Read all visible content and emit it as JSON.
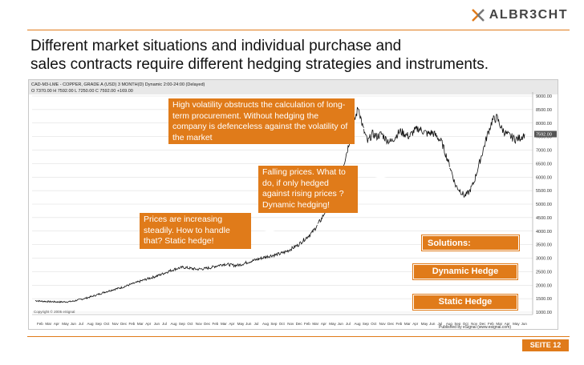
{
  "logo": {
    "text": "ALBR3CHT"
  },
  "title": {
    "line1": "Different market situations and individual purchase and",
    "line2": "sales contracts require different hedging strategies and instruments."
  },
  "chart": {
    "header_line": "CAD-M3-LME - COPPER, GRADE A (USD) 3 MONTH(D) Dynamic 2:00-24:00 (Delayed)",
    "ohlc_line": "O 7370.00  H 7592.00  L 7250.00  C 7592.00  +169.00",
    "copyright": "Copyright © 2005 eSignal",
    "published": "Published by eSignal (www.esignal.com)",
    "y_axis_labels": [
      "9000.00",
      "8500.00",
      "8000.00",
      "7500.00",
      "7000.00",
      "6500.00",
      "6000.00",
      "5500.00",
      "5000.00",
      "4500.00",
      "4000.00",
      "3500.00",
      "3000.00",
      "2500.00",
      "2000.00",
      "1500.00",
      "1000.00"
    ],
    "last_price_label": "7592.00",
    "month_labels": [
      "Feb",
      "Mar",
      "Apr",
      "May",
      "Jun",
      "Jul",
      "Aug",
      "Sep",
      "Oct",
      "Nov",
      "Dec",
      "Feb",
      "Mar",
      "Apr",
      "Jun",
      "Jul",
      "Aug",
      "Sep",
      "Oct",
      "Nov",
      "Dec",
      "Feb",
      "Mar",
      "Apr",
      "May",
      "Jun",
      "Jul",
      "Aug",
      "Sep",
      "Oct",
      "Nov",
      "Dec",
      "Feb",
      "Mar",
      "Apr",
      "May",
      "Jun",
      "Jul",
      "Aug",
      "Sep",
      "Oct",
      "Nov",
      "Dec",
      "Feb",
      "Mar",
      "Apr",
      "May",
      "Jun",
      "Jul",
      "Aug",
      "Sep",
      "Oct",
      "Nov",
      "Dec",
      "Feb",
      "Mar",
      "Apr",
      "May",
      "Jun"
    ]
  },
  "callouts": {
    "volatility": "High volatility obstructs the calculation of long-term procurement. Without hedging the company  is defenceless against  the volatility of the market",
    "falling": "Falling prices. What to do, if only hedged against rising prices ? Dynamic hedging!",
    "increasing": "Prices are increasing steadily. How to handle that? Static hedge!"
  },
  "solutions": {
    "title": "Solutions:",
    "dynamic": "Dynamic Hedge",
    "static": "Static Hedge"
  },
  "footer": {
    "page": "SEITE 12"
  },
  "colors": {
    "accent": "#e07b1a",
    "price_line": "#111111",
    "grid": "#d9d9d9"
  },
  "chart_data": {
    "type": "line",
    "series": [
      {
        "values": [
          1430,
          1410,
          1400,
          1390,
          1385,
          1380,
          1380,
          1385,
          1400,
          1440,
          1480,
          1520,
          1570,
          1620,
          1680,
          1740,
          1790,
          1840,
          1880,
          1930,
          1990,
          2050,
          2100,
          2160,
          2220,
          2270,
          2320,
          2380,
          2450,
          2520,
          2580,
          2630,
          2660,
          2640,
          2610,
          2590,
          2600,
          2620,
          2650,
          2700,
          2750,
          2780,
          2760,
          2730,
          2740,
          2790,
          2850,
          2900,
          2950,
          3000,
          3050,
          3090,
          3120,
          3160,
          3220,
          3300,
          3400,
          3500,
          3650,
          3800,
          3950,
          4200,
          4450,
          4800,
          5200,
          5600,
          6100,
          6600,
          7300,
          8000,
          8600,
          7800,
          7300,
          7600,
          7500,
          7600,
          7400,
          7300,
          7500,
          7700,
          7600,
          7500,
          7700,
          7800,
          7700,
          7600,
          7650,
          7500,
          7300,
          6800,
          6300,
          5700,
          5500,
          5300,
          5450,
          5800,
          6400,
          7000,
          7600,
          8100,
          8200,
          7800,
          7600,
          7500,
          7400,
          7450,
          7592
        ]
      }
    ],
    "ylim": [
      1000,
      9000
    ],
    "grid": true
  }
}
